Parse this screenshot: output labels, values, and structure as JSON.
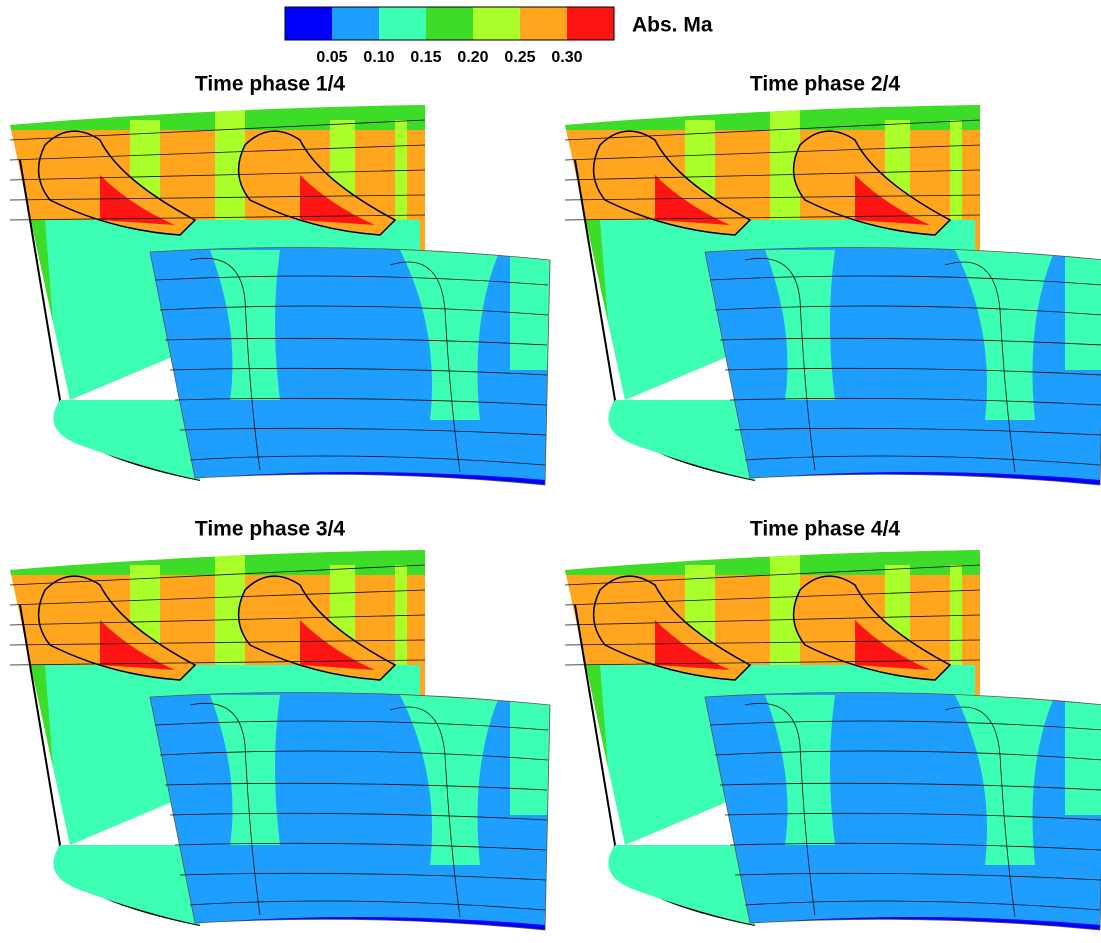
{
  "colorbar": {
    "label": "Abs. Ma",
    "colors": [
      "#0000ff",
      "#1e9eff",
      "#3cffb4",
      "#3cdc28",
      "#aaff2a",
      "#ffa51e",
      "#ff1414"
    ],
    "ticks": [
      "0.05",
      "0.10",
      "0.15",
      "0.20",
      "0.25",
      "0.30"
    ]
  },
  "panels": [
    {
      "title": "Time phase 1/4"
    },
    {
      "title": "Time phase 2/4"
    },
    {
      "title": "Time phase 3/4"
    },
    {
      "title": "Time phase 4/4"
    }
  ]
}
